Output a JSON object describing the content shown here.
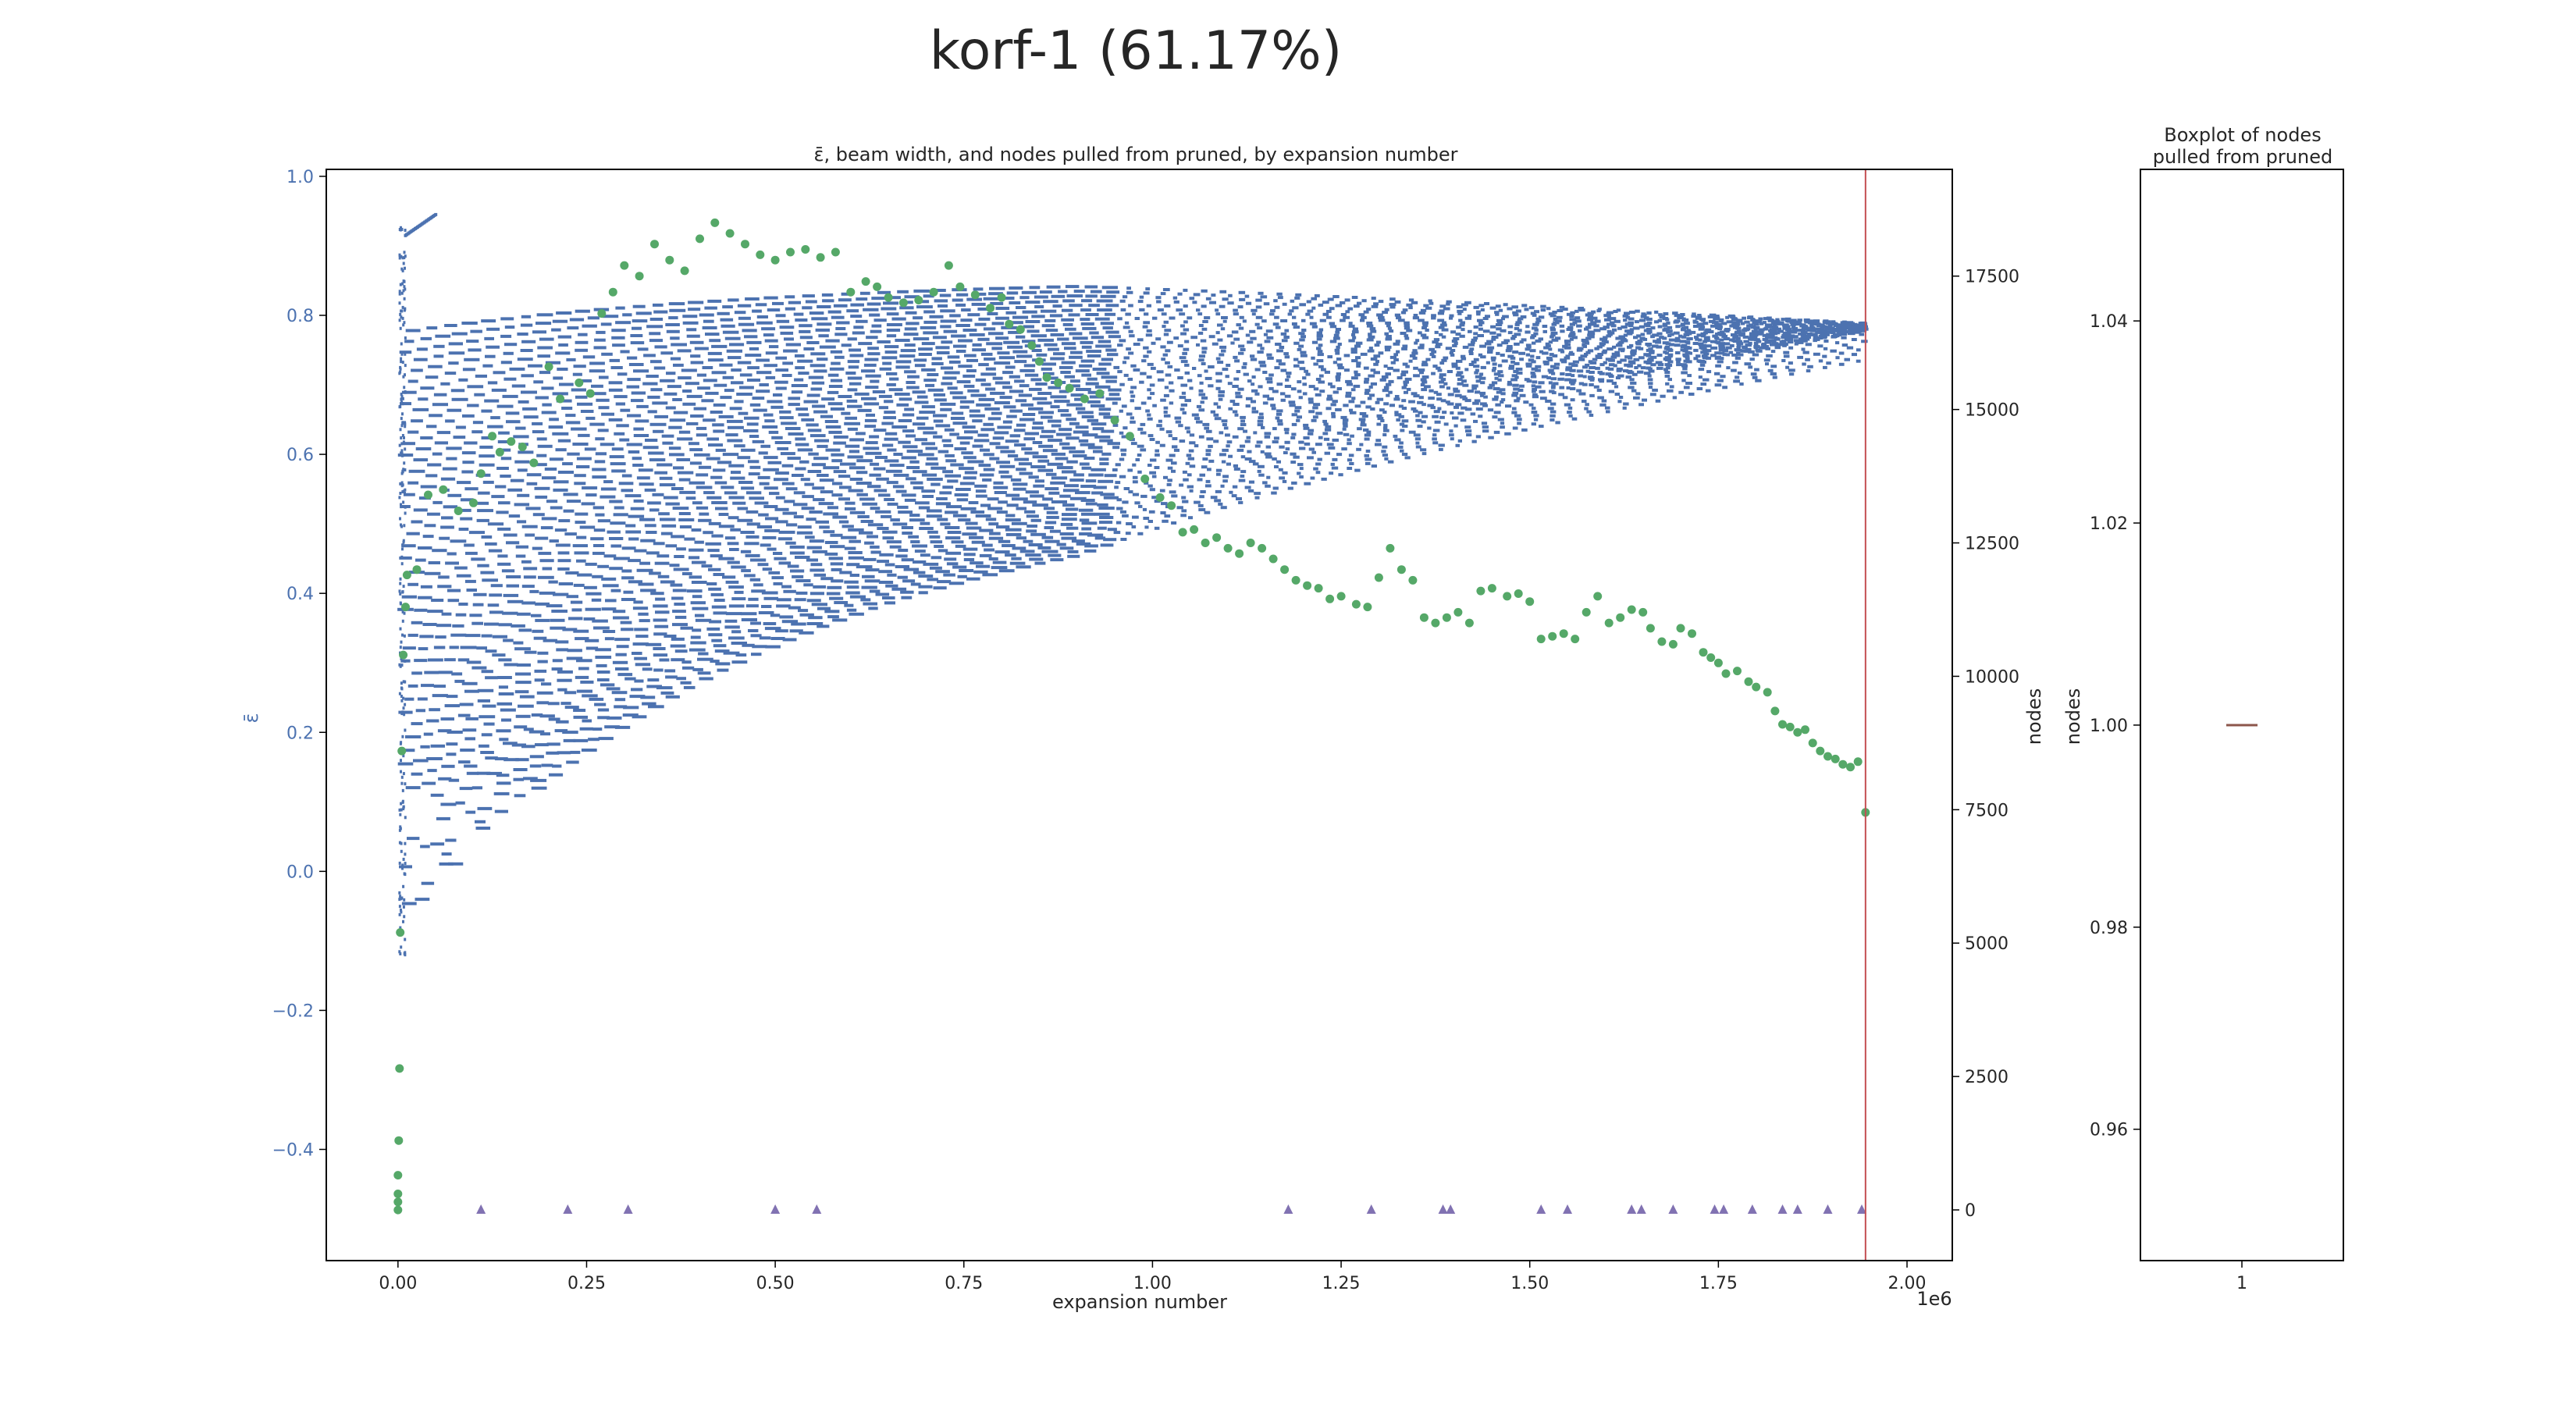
{
  "figure": {
    "title": "korf-1 (61.17%)"
  },
  "colors": {
    "epsilon": "#4c72b0",
    "beam_width": "#55a868",
    "pulled_from_pruned": "#8172b2",
    "vline": "#c44e52",
    "box_median": "#8c564b",
    "axis": "#000000",
    "text": "#262626"
  },
  "chart_data": [
    {
      "type": "scatter",
      "title": "ε̄, beam width, and nodes pulled from pruned, by expansion number",
      "xlabel": "expansion number",
      "x_offset_label": "1e6",
      "ylabel_left": "ε̄",
      "ylabel_right": "nodes",
      "ylabel_right_2": "nodes",
      "xlim": [
        -0.095,
        2.06
      ],
      "ylim_left": [
        -0.56,
        1.01
      ],
      "ylim_right": [
        -950,
        19500
      ],
      "x_ticks": [
        0.0,
        0.25,
        0.5,
        0.75,
        1.0,
        1.25,
        1.5,
        1.75,
        2.0
      ],
      "x_tick_labels": [
        "0.00",
        "0.25",
        "0.50",
        "0.75",
        "1.00",
        "1.25",
        "1.50",
        "1.75",
        "2.00"
      ],
      "y_left_ticks": [
        1.0,
        0.8,
        0.6,
        0.4,
        0.2,
        0.0,
        -0.2,
        -0.4
      ],
      "y_left_tick_labels": [
        "1.0",
        "0.8",
        "0.6",
        "0.4",
        "0.2",
        "0.0",
        "−0.2",
        "−0.4"
      ],
      "y_right_ticks": [
        17500,
        15000,
        12500,
        10000,
        7500,
        5000,
        2500,
        0
      ],
      "y_right_tick_labels": [
        "17500",
        "15000",
        "12500",
        "10000",
        "7500",
        "5000",
        "2500",
        "0"
      ],
      "vline_x": 1.945,
      "grid": false,
      "series": [
        {
          "axis": "right",
          "marker": "circle",
          "x": [
            0.0,
            0.0,
            0.0,
            0.0,
            0.001,
            0.002,
            0.003,
            0.005,
            0.007,
            0.01,
            0.012,
            0.025,
            0.04,
            0.06,
            0.08,
            0.1,
            0.11,
            0.125,
            0.135,
            0.15,
            0.165,
            0.18,
            0.2,
            0.215,
            0.24,
            0.255,
            0.27,
            0.285,
            0.3,
            0.32,
            0.34,
            0.36,
            0.38,
            0.4,
            0.42,
            0.44,
            0.46,
            0.48,
            0.5,
            0.52,
            0.54,
            0.56,
            0.58,
            0.6,
            0.62,
            0.635,
            0.65,
            0.67,
            0.69,
            0.71,
            0.73,
            0.745,
            0.765,
            0.785,
            0.8,
            0.81,
            0.825,
            0.84,
            0.85,
            0.86,
            0.875,
            0.89,
            0.91,
            0.93,
            0.95,
            0.97,
            0.99,
            1.01,
            1.025,
            1.04,
            1.055,
            1.07,
            1.085,
            1.1,
            1.115,
            1.13,
            1.145,
            1.16,
            1.175,
            1.19,
            1.205,
            1.22,
            1.235,
            1.25,
            1.27,
            1.285,
            1.3,
            1.315,
            1.33,
            1.345,
            1.36,
            1.375,
            1.39,
            1.405,
            1.42,
            1.435,
            1.45,
            1.47,
            1.485,
            1.5,
            1.515,
            1.53,
            1.545,
            1.56,
            1.575,
            1.59,
            1.605,
            1.62,
            1.635,
            1.65,
            1.66,
            1.675,
            1.69,
            1.7,
            1.715,
            1.73,
            1.74,
            1.75,
            1.76,
            1.775,
            1.79,
            1.8,
            1.815,
            1.825,
            1.835,
            1.845,
            1.855,
            1.865,
            1.875,
            1.885,
            1.895,
            1.905,
            1.915,
            1.925,
            1.935,
            1.945
          ],
          "y": [
            0,
            150,
            300,
            650,
            1300,
            2650,
            5200,
            8600,
            10400,
            11300,
            11900,
            12000,
            13400,
            13500,
            13100,
            13250,
            13800,
            14500,
            14200,
            14400,
            14300,
            14000,
            15800,
            15200,
            15500,
            15300,
            16800,
            17200,
            17700,
            17500,
            18100,
            17800,
            17600,
            18200,
            18500,
            18300,
            18100,
            17900,
            17800,
            17950,
            18000,
            17850,
            17950,
            17200,
            17400,
            17300,
            17100,
            17000,
            17050,
            17200,
            17700,
            17300,
            17150,
            16900,
            17100,
            16600,
            16500,
            16200,
            15900,
            15600,
            15500,
            15400,
            15200,
            15300,
            14800,
            14500,
            13700,
            13350,
            13200,
            12700,
            12750,
            12500,
            12600,
            12400,
            12300,
            12500,
            12400,
            12200,
            12000,
            11800,
            11700,
            11650,
            11450,
            11500,
            11350,
            11300,
            11850,
            12400,
            12000,
            11800,
            11100,
            11000,
            11100,
            11200,
            11000,
            11600,
            11650,
            11500,
            11550,
            11400,
            10700,
            10750,
            10800,
            10700,
            11200,
            11500,
            11000,
            11100,
            11250,
            11200,
            10900,
            10650,
            10600,
            10900,
            10800,
            10450,
            10350,
            10250,
            10050,
            10100,
            9900,
            9800,
            9700,
            9350,
            9100,
            9050,
            8950,
            9000,
            8750,
            8600,
            8500,
            8450,
            8350,
            8300,
            8400,
            7450
          ]
        },
        {
          "axis": "right",
          "marker": "triangle",
          "x": [
            0.11,
            0.225,
            0.305,
            0.5,
            0.555,
            1.18,
            1.29,
            1.385,
            1.395,
            1.515,
            1.55,
            1.635,
            1.648,
            1.69,
            1.745,
            1.757,
            1.795,
            1.835,
            1.855,
            1.895,
            1.94
          ],
          "y": [
            0,
            0,
            0,
            0,
            0,
            0,
            0,
            0,
            0,
            0,
            0,
            0,
            0,
            0,
            0,
            0,
            0,
            0,
            0,
            0,
            0
          ]
        }
      ]
    },
    {
      "type": "box",
      "title": "Boxplot of nodes pulled from pruned",
      "title_lines": [
        "Boxplot of nodes",
        "pulled from pruned"
      ],
      "ylabel": "nodes",
      "categories": [
        "1"
      ],
      "ylim": [
        0.947,
        1.055
      ],
      "y_ticks": [
        1.04,
        1.02,
        1.0,
        0.98,
        0.96
      ],
      "y_tick_labels": [
        "1.04",
        "1.02",
        "1.00",
        "0.98",
        "0.96"
      ],
      "median": 1.0,
      "q1": 1.0,
      "q3": 1.0,
      "whisker_low": 1.0,
      "whisker_high": 1.0
    }
  ]
}
